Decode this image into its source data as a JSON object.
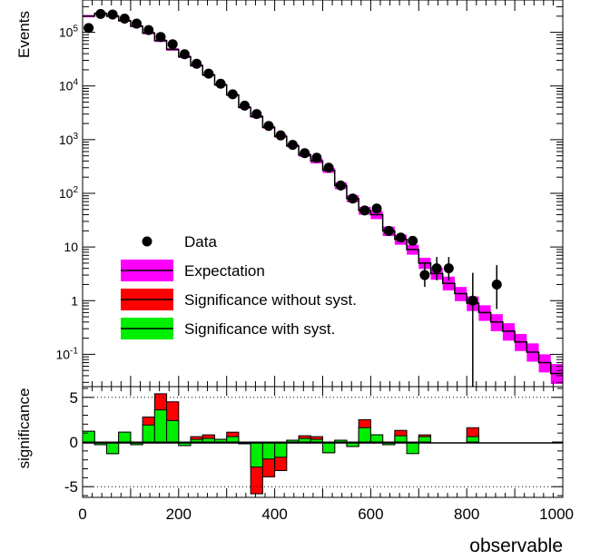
{
  "chart_data": [
    {
      "type": "histogram",
      "panel": "top",
      "ylabel": "Events",
      "yscale": "log",
      "ylim": [
        0.025,
        400000
      ],
      "xlim": [
        0,
        1000
      ],
      "y_tick_labels": [
        "10-1",
        "1",
        "10",
        "102",
        "103",
        "104",
        "105"
      ],
      "bin_edges": [
        0,
        25,
        50,
        75,
        100,
        125,
        150,
        175,
        200,
        225,
        250,
        275,
        300,
        325,
        350,
        375,
        400,
        425,
        450,
        475,
        500,
        525,
        550,
        575,
        600,
        625,
        650,
        675,
        700,
        725,
        750,
        775,
        800,
        825,
        850,
        875,
        900,
        925,
        950,
        975,
        1000
      ],
      "series": [
        {
          "name": "Data",
          "x": [
            12.5,
            37.5,
            62.5,
            87.5,
            112.5,
            137.5,
            162.5,
            187.5,
            212.5,
            237.5,
            262.5,
            287.5,
            312.5,
            337.5,
            362.5,
            387.5,
            412.5,
            437.5,
            462.5,
            487.5,
            512.5,
            537.5,
            562.5,
            587.5,
            612.5,
            637.5,
            662.5,
            687.5,
            712.5,
            737.5,
            762.5,
            812.5,
            862.5
          ],
          "y": [
            120000,
            220000,
            215000,
            180000,
            145000,
            110000,
            82000,
            60000,
            39000,
            26000,
            17000,
            11000,
            7000,
            4300,
            3000,
            1800,
            1200,
            800,
            560,
            460,
            300,
            140,
            80,
            48,
            52,
            20,
            15,
            13,
            3,
            4,
            4,
            1,
            2
          ],
          "yerr_lo": [
            0,
            0,
            0,
            0,
            0,
            0,
            0,
            0,
            0,
            0,
            0,
            0,
            0,
            0,
            0,
            0,
            0,
            0,
            0,
            0,
            0,
            0,
            0,
            0,
            0,
            0,
            0,
            0,
            1.2,
            1.6,
            1.6,
            1,
            1.3
          ],
          "yerr_hi": [
            0,
            0,
            0,
            0,
            0,
            0,
            0,
            0,
            0,
            0,
            0,
            0,
            0,
            0,
            0,
            0,
            0,
            0,
            0,
            0,
            0,
            0,
            0,
            0,
            0,
            0,
            0,
            0,
            2,
            2.5,
            2.5,
            2.3,
            2.6
          ]
        },
        {
          "name": "Expectation",
          "values": [
            200000,
            225000,
            200000,
            165000,
            130000,
            97000,
            70000,
            48000,
            35000,
            24000,
            16000,
            10500,
            6800,
            4000,
            2700,
            1700,
            1150,
            770,
            520,
            400,
            270,
            140,
            80,
            48,
            40,
            20,
            14,
            9,
            5,
            3.2,
            2.1,
            1.35,
            0.9,
            0.6,
            0.4,
            0.27,
            0.17,
            0.11,
            0.07,
            0.044
          ],
          "band_hi": [
            210000,
            235000,
            210000,
            173000,
            136000,
            102000,
            74000,
            50500,
            36800,
            25200,
            16800,
            11000,
            7100,
            4200,
            2850,
            1800,
            1220,
            820,
            560,
            440,
            300,
            160,
            92,
            56,
            47,
            24,
            17,
            11,
            6.3,
            4.1,
            2.8,
            1.8,
            1.2,
            0.82,
            0.56,
            0.38,
            0.24,
            0.16,
            0.1,
            0.066
          ],
          "band_lo": [
            190000,
            215000,
            190000,
            157000,
            124000,
            92000,
            66000,
            45500,
            33200,
            22800,
            15200,
            10000,
            6500,
            3800,
            2550,
            1600,
            1080,
            720,
            480,
            360,
            240,
            120,
            68,
            40,
            33,
            16,
            11,
            7.2,
            3.9,
            2.45,
            1.55,
            0.98,
            0.64,
            0.42,
            0.27,
            0.18,
            0.115,
            0.073,
            0.046,
            0.028
          ]
        }
      ],
      "legend": [
        "Data",
        "Expectation",
        "Significance without syst.",
        "Significance with syst."
      ],
      "legend_position": "lower-left"
    },
    {
      "type": "histogram",
      "panel": "bottom",
      "ylabel": "significance",
      "xlabel": "observable",
      "xlim": [
        0,
        1000
      ],
      "ylim": [
        -6.2,
        6.2
      ],
      "x_tick_labels": [
        "0",
        "200",
        "400",
        "600",
        "800",
        "1000"
      ],
      "y_tick_labels": [
        "-5",
        "0",
        "5"
      ],
      "reference_lines": [
        -5,
        5
      ],
      "series": [
        {
          "name": "Significance without syst.",
          "values": [
            1.2,
            -0.3,
            -1.3,
            1.1,
            -0.3,
            2.8,
            5.4,
            4.5,
            -0.4,
            0.6,
            0.8,
            0.3,
            1.1,
            -0.2,
            -5.8,
            -3.9,
            -3.2,
            0.2,
            0.7,
            0.6,
            -1.2,
            0.2,
            -0.5,
            2.5,
            0.8,
            -0.3,
            1.3,
            -0.3,
            0.8,
            0.0,
            0.0,
            0.0,
            1.6,
            0.0,
            0.0,
            0.0,
            0.0,
            0.0,
            0.0,
            0.0
          ]
        },
        {
          "name": "Significance with syst.",
          "values": [
            1.2,
            -0.3,
            -1.3,
            1.1,
            -0.3,
            1.9,
            3.6,
            2.4,
            -0.4,
            0.3,
            0.4,
            0.3,
            0.6,
            -0.2,
            -2.8,
            -1.9,
            -1.7,
            0.2,
            0.4,
            0.3,
            -1.2,
            0.2,
            -0.5,
            1.6,
            0.8,
            -0.3,
            0.7,
            -1.3,
            0.6,
            0.0,
            0.0,
            0.0,
            0.6,
            0.0,
            0.0,
            0.0,
            0.0,
            0.0,
            0.0,
            0.0
          ]
        }
      ]
    }
  ],
  "colors": {
    "data_marker": "#000000",
    "expectation_band": "#ff00ff",
    "no_syst": "#ff0000",
    "with_syst": "#00ee00",
    "line": "#000000"
  }
}
